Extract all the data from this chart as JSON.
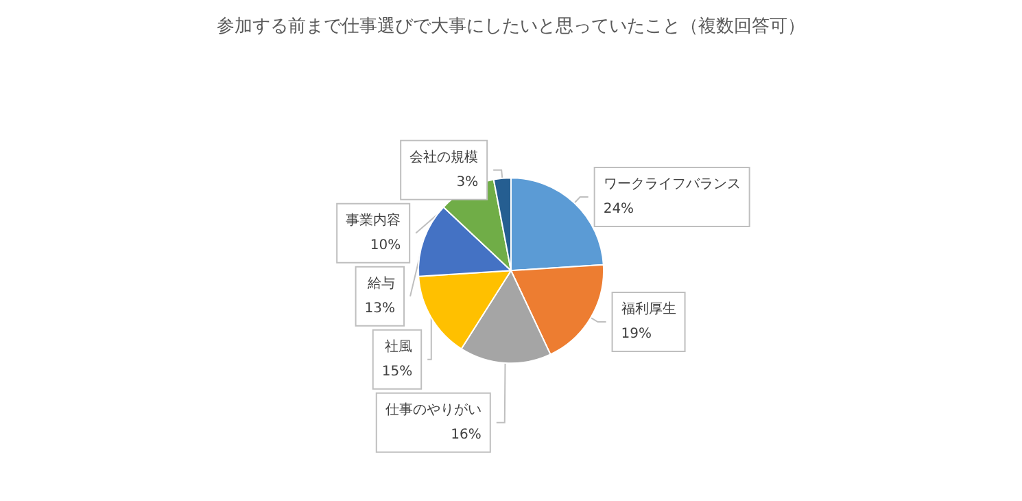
{
  "chart_data": {
    "type": "pie",
    "title": "参加する前まで仕事選びで大事にしたいと思っていたこと（複数回答可）",
    "categories": [
      "ワークライフバランス",
      "福利厚生",
      "仕事のやりがい",
      "社風",
      "給与",
      "事業内容",
      "会社の規模"
    ],
    "values": [
      24,
      19,
      16,
      15,
      13,
      10,
      3
    ],
    "value_labels": [
      "24%",
      "19%",
      "16%",
      "15%",
      "13%",
      "10%",
      "3%"
    ],
    "colors": [
      "#5b9bd5",
      "#ed7d31",
      "#a5a5a5",
      "#ffc000",
      "#4472c4",
      "#70ad47",
      "#255e91"
    ],
    "legend": false
  }
}
